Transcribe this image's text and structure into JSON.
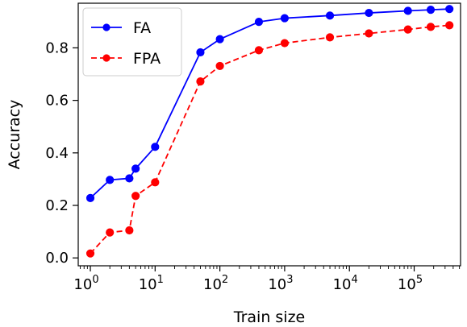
{
  "chart_data": {
    "type": "line",
    "xlabel": "Train size",
    "ylabel": "Accuracy",
    "xscale": "log",
    "xlim": [
      0.65,
      520000
    ],
    "ylim": [
      -0.03,
      0.97
    ],
    "yticks": [
      0.0,
      0.2,
      0.4,
      0.6,
      0.8
    ],
    "ytick_labels": [
      "0.0",
      "0.2",
      "0.4",
      "0.6",
      "0.8"
    ],
    "xticks": [
      1,
      10,
      100,
      1000,
      10000,
      100000
    ],
    "xtick_labels": [
      {
        "base": "10",
        "exp": "0"
      },
      {
        "base": "10",
        "exp": "1"
      },
      {
        "base": "10",
        "exp": "2"
      },
      {
        "base": "10",
        "exp": "3"
      },
      {
        "base": "10",
        "exp": "4"
      },
      {
        "base": "10",
        "exp": "5"
      }
    ],
    "legend_position": "top-left",
    "x": [
      1,
      2,
      4,
      5,
      10,
      50,
      100,
      400,
      1000,
      5000,
      20000,
      80000,
      180000,
      350000
    ],
    "series": [
      {
        "name": "FA",
        "color": "#0000ff",
        "linestyle": "solid",
        "marker": "circle",
        "values": [
          0.228,
          0.297,
          0.303,
          0.34,
          0.423,
          0.783,
          0.833,
          0.899,
          0.913,
          0.923,
          0.933,
          0.941,
          0.945,
          0.948
        ]
      },
      {
        "name": "FPA",
        "color": "#ff0000",
        "linestyle": "dashed",
        "marker": "circle",
        "values": [
          0.017,
          0.097,
          0.105,
          0.236,
          0.288,
          0.672,
          0.731,
          0.791,
          0.818,
          0.84,
          0.855,
          0.87,
          0.88,
          0.886
        ]
      }
    ]
  }
}
